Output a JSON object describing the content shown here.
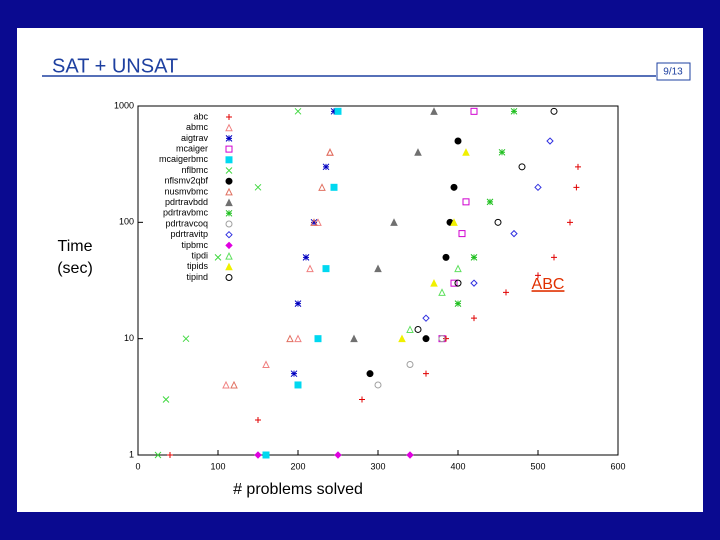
{
  "slide": {
    "title": "SAT + UNSAT",
    "page": "9/13"
  },
  "chart_data": {
    "type": "scatter",
    "x_label": "# problems solved",
    "y_label": "Time (sec)",
    "annotation": "ABC",
    "log_y": true,
    "xlim": [
      0,
      600
    ],
    "ylim": [
      1,
      1000
    ],
    "xticks": [
      0,
      100,
      200,
      300,
      400,
      500,
      600
    ],
    "yticks": [
      1,
      10,
      100,
      1000
    ],
    "series": [
      {
        "name": "abc",
        "color": "#e00000",
        "marker": "plus",
        "x": [
          40,
          150,
          280,
          360,
          385,
          420,
          460,
          500,
          520,
          540,
          548,
          550
        ],
        "values": [
          1,
          2,
          3,
          5,
          10,
          15,
          25,
          35,
          50,
          100,
          200,
          300
        ]
      },
      {
        "name": "abmc",
        "color": "#f08080",
        "marker": "triangle",
        "x": [
          110,
          160,
          200,
          215,
          225,
          240
        ],
        "values": [
          4,
          6,
          10,
          40,
          100,
          400
        ]
      },
      {
        "name": "aigtrav",
        "color": "#0000c0",
        "marker": "star",
        "x": [
          195,
          200,
          210,
          220,
          235,
          245
        ],
        "values": [
          5,
          20,
          50,
          100,
          300,
          900
        ]
      },
      {
        "name": "mcaiger",
        "color": "#d000d0",
        "marker": "square",
        "x": [
          380,
          395,
          405,
          410,
          420
        ],
        "values": [
          10,
          30,
          80,
          150,
          900
        ]
      },
      {
        "name": "mcaigerbmc",
        "color": "#00d8f0",
        "marker": "filled-square",
        "x": [
          160,
          200,
          225,
          235,
          245,
          250
        ],
        "values": [
          1,
          4,
          10,
          40,
          200,
          900
        ]
      },
      {
        "name": "nflbmc",
        "color": "#40d840",
        "marker": "x",
        "x": [
          25,
          35,
          60,
          100,
          150,
          200
        ],
        "values": [
          1,
          3,
          10,
          50,
          200,
          900
        ]
      },
      {
        "name": "nflsmv2qbf",
        "color": "#000000",
        "marker": "filled-circle",
        "x": [
          290,
          360,
          385,
          390,
          395,
          400
        ],
        "values": [
          5,
          10,
          50,
          100,
          200,
          500
        ]
      },
      {
        "name": "nusmvbmc",
        "color": "#e07060",
        "marker": "triangle",
        "x": [
          120,
          190,
          220,
          230,
          240
        ],
        "values": [
          4,
          10,
          100,
          200,
          400
        ]
      },
      {
        "name": "pdrtravbdd",
        "color": "#707070",
        "marker": "filled-triangle",
        "x": [
          270,
          300,
          320,
          350,
          370
        ],
        "values": [
          10,
          40,
          100,
          400,
          900
        ]
      },
      {
        "name": "pdrtravbmc",
        "color": "#20c020",
        "marker": "star",
        "x": [
          400,
          420,
          440,
          455,
          470
        ],
        "values": [
          20,
          50,
          150,
          400,
          900
        ]
      },
      {
        "name": "pdrtravcoq",
        "color": "#a0a0a0",
        "marker": "circle",
        "x": [
          300,
          340,
          380
        ],
        "values": [
          4,
          6,
          10
        ]
      },
      {
        "name": "pdrtravitp",
        "color": "#3030e0",
        "marker": "diamond",
        "x": [
          360,
          420,
          470,
          500,
          515
        ],
        "values": [
          15,
          30,
          80,
          200,
          500
        ]
      },
      {
        "name": "tipbmc",
        "color": "#e000e0",
        "marker": "filled-diamond",
        "x": [
          150,
          250,
          340
        ],
        "values": [
          1,
          1,
          1
        ]
      },
      {
        "name": "tipdi",
        "color": "#60e060",
        "marker": "triangle",
        "x": [
          340,
          380,
          400
        ],
        "values": [
          12,
          25,
          40
        ]
      },
      {
        "name": "tipids",
        "color": "#f0f000",
        "marker": "filled-triangle",
        "x": [
          330,
          370,
          395,
          410
        ],
        "values": [
          10,
          30,
          100,
          400
        ]
      },
      {
        "name": "tipind",
        "color": "#000000",
        "marker": "circle",
        "x": [
          350,
          400,
          450,
          480,
          520
        ],
        "values": [
          12,
          30,
          100,
          300,
          900
        ]
      }
    ]
  }
}
